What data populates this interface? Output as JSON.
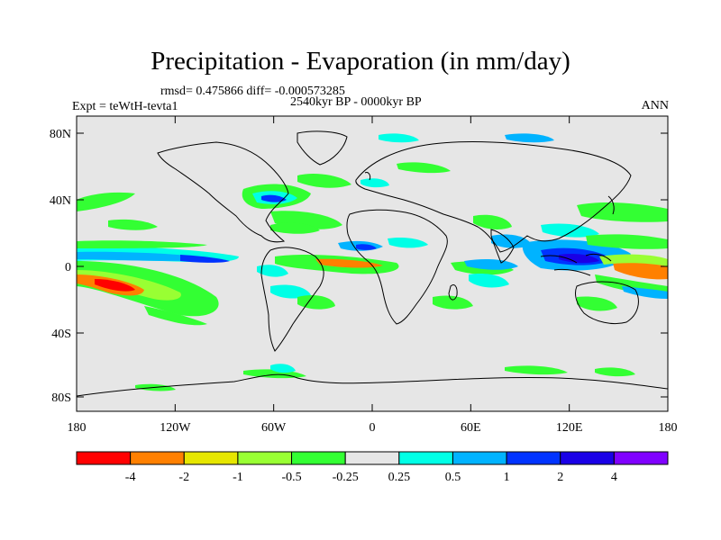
{
  "title": "Precipitation - Evaporation (in mm/day)",
  "stats": "rmsd= 0.475866 diff= -0.000573285",
  "period": "2540kyr BP - 0000kyr BP",
  "experiment": "Expt = teWtH-tevta1",
  "season": "ANN",
  "map": {
    "lon_labels": [
      "180",
      "120W",
      "60W",
      "0",
      "60E",
      "120E",
      "180"
    ],
    "lat_labels": [
      "80N",
      "40N",
      "0",
      "40S",
      "80S"
    ],
    "ocean_color": "#e6e6e6"
  },
  "colorbar": {
    "colors": [
      "#ff0000",
      "#ff8000",
      "#e6e600",
      "#99ff33",
      "#33ff33",
      "#e6e6e6",
      "#00ffe6",
      "#00b3ff",
      "#0033ff",
      "#1a00e6",
      "#8000ff"
    ],
    "labels": [
      "-4",
      "-2",
      "-1",
      "-0.5",
      "-0.25",
      "0.25",
      "0.5",
      "1",
      "2",
      "4"
    ]
  }
}
